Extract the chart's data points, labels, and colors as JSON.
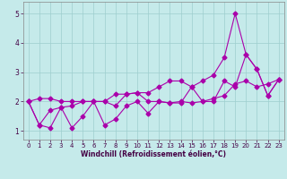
{
  "xlabel": "Windchill (Refroidissement éolien,°C)",
  "xlim": [
    -0.5,
    23.5
  ],
  "ylim": [
    0.7,
    5.4
  ],
  "yticks": [
    1,
    2,
    3,
    4,
    5
  ],
  "xticks": [
    0,
    1,
    2,
    3,
    4,
    5,
    6,
    7,
    8,
    9,
    10,
    11,
    12,
    13,
    14,
    15,
    16,
    17,
    18,
    19,
    20,
    21,
    22,
    23
  ],
  "background_color": "#c5eaea",
  "grid_color": "#9ecece",
  "line_color": "#aa00aa",
  "marker": "D",
  "markersize": 2.5,
  "linewidth": 0.8,
  "series": [
    [
      2.0,
      2.1,
      2.1,
      2.0,
      2.0,
      2.0,
      2.0,
      2.0,
      2.25,
      2.25,
      2.3,
      2.0,
      2.0,
      1.95,
      2.0,
      1.95,
      2.0,
      2.1,
      2.2,
      2.6,
      2.7,
      2.5,
      2.6,
      2.75
    ],
    [
      2.0,
      1.2,
      1.1,
      1.8,
      1.1,
      1.5,
      2.0,
      1.2,
      1.4,
      1.85,
      2.0,
      1.6,
      2.0,
      1.95,
      1.95,
      2.5,
      2.0,
      2.0,
      2.7,
      2.5,
      3.6,
      3.1,
      2.2,
      2.75
    ],
    [
      2.0,
      1.2,
      1.7,
      1.8,
      1.85,
      2.0,
      2.0,
      2.0,
      1.85,
      2.25,
      2.3,
      2.3,
      2.5,
      2.7,
      2.7,
      2.5,
      2.7,
      2.9,
      3.5,
      5.0,
      3.6,
      3.1,
      2.2,
      2.75
    ]
  ],
  "xlabel_fontsize": 5.5,
  "tick_fontsize": 5.0,
  "xlabel_color": "#440044",
  "tick_color": "#440044",
  "spine_color": "#888888"
}
